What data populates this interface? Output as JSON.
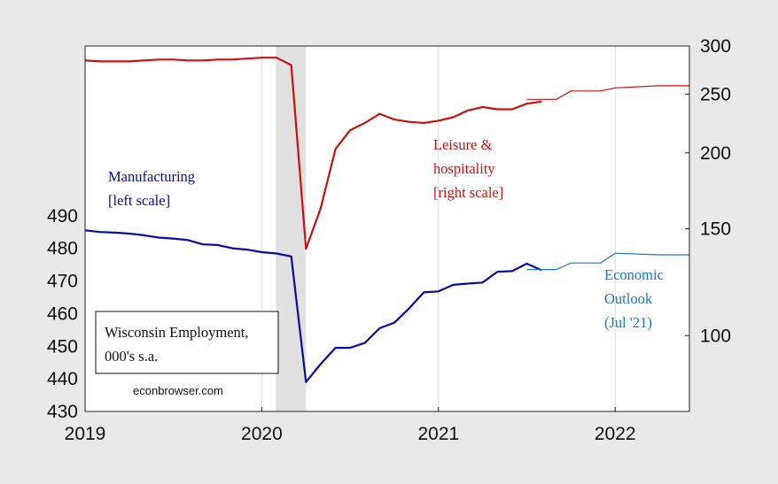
{
  "chart_data": {
    "type": "line",
    "title": "Wisconsin Employment,",
    "subtitle": "000's s.a.",
    "source": "econbrowser.com",
    "x_ticks": [
      "2019",
      "2020",
      "2021",
      "2022"
    ],
    "x_range": [
      2019.0,
      2022.42
    ],
    "left_axis": {
      "ticks": [
        "430",
        "440",
        "450",
        "460",
        "470",
        "480",
        "490"
      ],
      "range": [
        430,
        542
      ]
    },
    "right_axis": {
      "log_scale": true,
      "ticks": [
        "100",
        "150",
        "200",
        "250",
        "300"
      ],
      "range": [
        75,
        300
      ]
    },
    "recession_shade": [
      2020.08,
      2020.25
    ],
    "colors": {
      "manufacturing": "#0a0aa0",
      "leisure": "#cc1010",
      "outlook": "#1c74d8",
      "shade": "#e1e1e1"
    },
    "series": [
      {
        "name": "Manufacturing",
        "scale_note": "[left scale]",
        "axis": "left",
        "x": [
          2019.0,
          2019.083,
          2019.167,
          2019.25,
          2019.333,
          2019.417,
          2019.5,
          2019.583,
          2019.667,
          2019.75,
          2019.833,
          2019.917,
          2020.0,
          2020.083,
          2020.167,
          2020.25,
          2020.333,
          2020.417,
          2020.5,
          2020.583,
          2020.667,
          2020.75,
          2020.833,
          2020.917,
          2021.0,
          2021.083,
          2021.167,
          2021.25,
          2021.333,
          2021.417,
          2021.5,
          2021.583
        ],
        "y": [
          485.5,
          485,
          484.8,
          484.5,
          484,
          483.3,
          483,
          482.5,
          481.2,
          481,
          480,
          479.6,
          478.8,
          478.4,
          477.5,
          439,
          444.5,
          449.5,
          449.5,
          451,
          455.5,
          457.2,
          461.5,
          466.5,
          466.8,
          468.8,
          469.2,
          469.5,
          472.8,
          473,
          475.3,
          473.3
        ]
      },
      {
        "name": "Leisure & hospitality",
        "scale_note": "[right scale]",
        "axis": "right",
        "x": [
          2019.0,
          2019.083,
          2019.167,
          2019.25,
          2019.333,
          2019.417,
          2019.5,
          2019.583,
          2019.667,
          2019.75,
          2019.833,
          2019.917,
          2020.0,
          2020.083,
          2020.167,
          2020.25,
          2020.333,
          2020.417,
          2020.5,
          2020.583,
          2020.667,
          2020.75,
          2020.833,
          2020.917,
          2021.0,
          2021.083,
          2021.167,
          2021.25,
          2021.333,
          2021.417,
          2021.5,
          2021.583
        ],
        "y": [
          284,
          283,
          283,
          283,
          284,
          285,
          285,
          284,
          284,
          285,
          285,
          286,
          287,
          287,
          279,
          139,
          162,
          203,
          218,
          224,
          232,
          227,
          225,
          224,
          226,
          229,
          235,
          238,
          236,
          236,
          241,
          243
        ]
      },
      {
        "name": "Economic Outlook (Jul '21) - manufacturing",
        "axis": "left",
        "x": [
          2021.5,
          2021.667,
          2021.75,
          2021.917,
          2022.0,
          2022.25,
          2022.42
        ],
        "y": [
          473.5,
          473.5,
          475.5,
          475.5,
          478.5,
          478,
          478
        ]
      },
      {
        "name": "Economic Outlook (Jul '21) - leisure",
        "axis": "right",
        "x": [
          2021.5,
          2021.667,
          2021.75,
          2021.917,
          2022.0,
          2022.25,
          2022.42
        ],
        "y": [
          245,
          245,
          253,
          253,
          256,
          258,
          258
        ]
      }
    ],
    "annotations": {
      "manufacturing": [
        "Manufacturing",
        "[left scale]"
      ],
      "leisure": [
        "Leisure &",
        "hospitality",
        "[right scale]"
      ],
      "outlook": [
        "Economic",
        "Outlook",
        "(Jul '21)"
      ]
    }
  }
}
